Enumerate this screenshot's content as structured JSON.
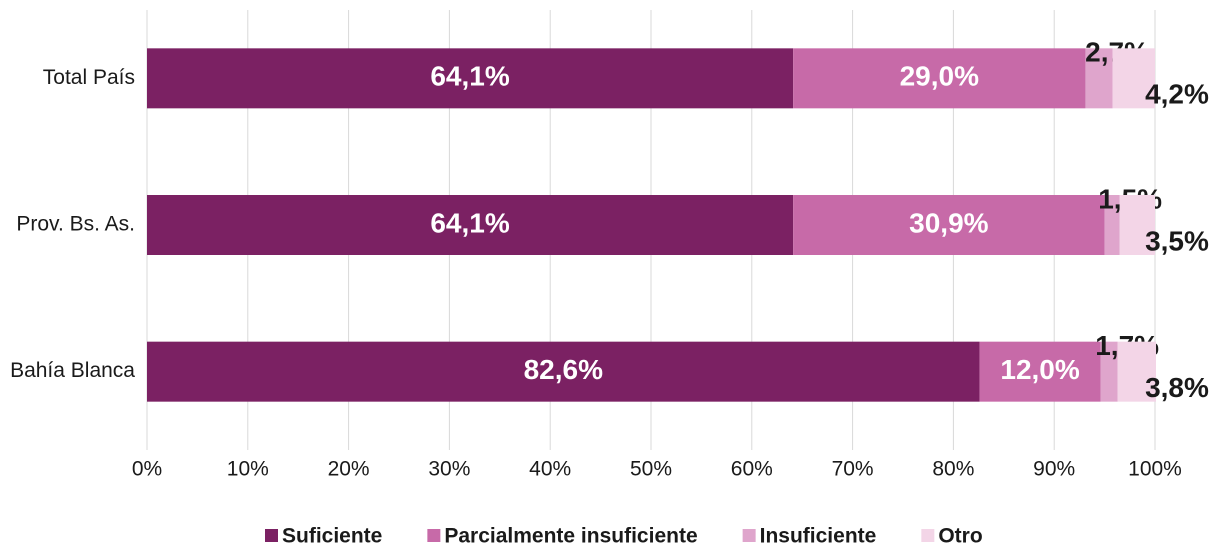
{
  "chart_data": {
    "type": "stacked-bar-horizontal",
    "categories": [
      "Total País",
      "Prov. Bs. As.",
      "Bahía Blanca"
    ],
    "series": [
      {
        "name": "Suficiente",
        "color": "#7b2163",
        "values": [
          64.1,
          64.1,
          82.6
        ],
        "value_labels": [
          "64,1%",
          "64,1%",
          "82,6%"
        ]
      },
      {
        "name": "Parcialmente insuficiente",
        "color": "#c76aa8",
        "values": [
          29.0,
          30.9,
          12.0
        ],
        "value_labels": [
          "29,0%",
          "30,9%",
          "12,0%"
        ]
      },
      {
        "name": "Insuficiente",
        "color": "#dfa5cc",
        "values": [
          2.7,
          1.5,
          1.7
        ],
        "value_labels": [
          "2,7%",
          "1,5%",
          "1,7%"
        ]
      },
      {
        "name": "Otro",
        "color": "#f3d5e7",
        "values": [
          4.2,
          3.5,
          3.8
        ],
        "value_labels": [
          "4,2%",
          "3,5%",
          "3,8%"
        ]
      }
    ],
    "xlim": [
      0,
      100
    ],
    "xticks": [
      {
        "value": 0,
        "label": "0%"
      },
      {
        "value": 10,
        "label": "10%"
      },
      {
        "value": 20,
        "label": "20%"
      },
      {
        "value": 30,
        "label": "30%"
      },
      {
        "value": 40,
        "label": "40%"
      },
      {
        "value": 50,
        "label": "50%"
      },
      {
        "value": 60,
        "label": "60%"
      },
      {
        "value": 70,
        "label": "70%"
      },
      {
        "value": 80,
        "label": "80%"
      },
      {
        "value": 90,
        "label": "90%"
      },
      {
        "value": 100,
        "label": "100%"
      }
    ],
    "grid": true,
    "legend": "bottom"
  }
}
